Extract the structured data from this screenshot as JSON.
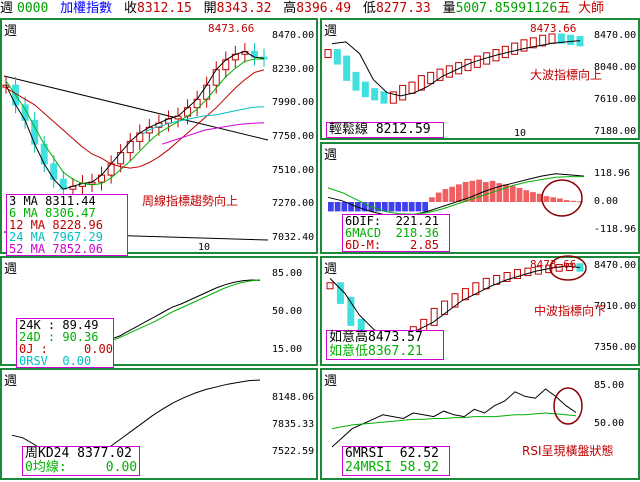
{
  "topbar": {
    "label_week": "週",
    "code": "0000",
    "index_name": "加權指數",
    "close_label": "收",
    "close": "8312.15",
    "open_label": "開",
    "open": "8343.32",
    "high_label": "高",
    "high": "8396.49",
    "low_label": "低",
    "low": "8277.33",
    "vol_label": "量",
    "vol": "5007.85991126",
    "suffix": "五 大師",
    "colors": {
      "code": "#00a000",
      "name": "#0000ff",
      "label": "#000000",
      "value": "#c00000"
    }
  },
  "panels": {
    "main": {
      "title": "週",
      "ma_box": [
        {
          "label": "3 MA",
          "value": "8311.44",
          "color": "#000000"
        },
        {
          "label": "6 MA",
          "value": "8306.47",
          "color": "#00b000"
        },
        {
          "label": "12 MA",
          "value": "8228.96",
          "color": "#c00000"
        },
        {
          "label": "24 MA",
          "value": "7967.29",
          "color": "#00c0c0"
        },
        {
          "label": "52 MA",
          "value": "7852.06",
          "color": "#d000d0"
        }
      ],
      "note": "周線指標趨勢向上",
      "peak_label": "8473.66",
      "xtick": "10"
    },
    "big_wave": {
      "title": "週",
      "peak_label": "8473.66",
      "box_label": "輕鬆線",
      "box_value": "8212.59",
      "note": "大波指標向上",
      "xtick": "10"
    },
    "macd": {
      "title": "週",
      "box": [
        {
          "label": "6DIF:",
          "value": "221.21",
          "color": "#000000"
        },
        {
          "label": "6MACD",
          "value": "218.36",
          "color": "#00b000"
        },
        {
          "label": "6D-M:",
          "value": "2.85",
          "color": "#c00000"
        }
      ]
    },
    "kd": {
      "title": "週",
      "box": [
        {
          "label": "24K :",
          "value": "89.49",
          "color": "#000000"
        },
        {
          "label": "24D :",
          "value": "90.36",
          "color": "#00b000"
        },
        {
          "label": "0J :",
          "value": "0.00",
          "color": "#c00000"
        },
        {
          "label": "0RSV",
          "value": "0.00",
          "color": "#00c0c0"
        }
      ]
    },
    "mid_wave": {
      "title": "週",
      "peak_label": "8473.66",
      "box": [
        {
          "label": "如意高",
          "value": "8473.57",
          "color": "#000000"
        },
        {
          "label": "如意低",
          "value": "8367.21",
          "color": "#00b000"
        }
      ],
      "note": "中波指標向下"
    },
    "kd2": {
      "title": "週",
      "box": [
        {
          "label": "周KD24",
          "value": "8377.02",
          "color": "#000000"
        },
        {
          "label": "0均線:",
          "value": "0.00",
          "color": "#00b000"
        }
      ]
    },
    "rsi": {
      "title": "週",
      "box": [
        {
          "label": "6MRSI",
          "value": "62.52",
          "color": "#000000"
        },
        {
          "label": "24MRSI",
          "value": "58.92",
          "color": "#00b000"
        }
      ],
      "note": "RSI呈現橫盤狀態"
    }
  },
  "chart_data": [
    {
      "type": "candlestick",
      "name": "main",
      "ylim": [
        7032.4,
        8470.0
      ],
      "yticks": [
        8470.0,
        8230.0,
        7990.0,
        7750.0,
        7510.0,
        7270.0,
        7032.4
      ],
      "ma3": [
        8120,
        7980,
        7870,
        7700,
        7560,
        7450,
        7380,
        7400,
        7420,
        7430,
        7480,
        7560,
        7640,
        7720,
        7780,
        7820,
        7850,
        7880,
        7900,
        7960,
        8020,
        8120,
        8230,
        8300,
        8340,
        8360,
        8320,
        8311
      ],
      "ma6": [
        8150,
        8050,
        7950,
        7820,
        7700,
        7600,
        7500,
        7450,
        7420,
        7410,
        7420,
        7460,
        7520,
        7580,
        7650,
        7720,
        7780,
        7820,
        7860,
        7900,
        7950,
        8020,
        8100,
        8180,
        8240,
        8290,
        8306,
        8306
      ],
      "ma12": [
        8100,
        8060,
        8020,
        7980,
        7920,
        7860,
        7800,
        7740,
        7680,
        7630,
        7600,
        7560,
        7540,
        7530,
        7540,
        7570,
        7610,
        7660,
        7720,
        7780,
        7840,
        7900,
        7960,
        8030,
        8100,
        8160,
        8210,
        8229
      ],
      "ma24": [
        7770,
        7800,
        7820,
        7830,
        7850,
        7860,
        7870,
        7880,
        7890,
        7900,
        7905,
        7910,
        7920,
        7930,
        7940,
        7950,
        7960,
        7965,
        7967
      ],
      "ma52": [
        7700,
        7720,
        7740,
        7760,
        7780,
        7800,
        7810,
        7820,
        7830,
        7840,
        7845,
        7850,
        7852
      ]
    },
    {
      "type": "bar",
      "name": "macd_histogram",
      "ylim": [
        -118.96,
        118.96
      ],
      "yticks": [
        118.96,
        0.0,
        -118.96
      ],
      "values": [
        -40,
        -40,
        -40,
        -40,
        -40,
        -40,
        -40,
        -40,
        -40,
        -40,
        -40,
        -40,
        -40,
        -40,
        -40,
        20,
        40,
        55,
        65,
        75,
        85,
        90,
        95,
        85,
        90,
        80,
        75,
        68,
        60,
        50,
        42,
        35,
        25,
        20,
        15,
        8,
        5,
        3
      ]
    },
    {
      "type": "line",
      "name": "kd",
      "yticks": [
        85.0,
        50.0,
        15.0
      ],
      "series": [
        {
          "name": "24K",
          "values": [
            13,
            16,
            20,
            26,
            32,
            38,
            44,
            50,
            56,
            60,
            65,
            70,
            75,
            80,
            84,
            87,
            89,
            90,
            89.49
          ]
        },
        {
          "name": "24D",
          "values": [
            12,
            14,
            18,
            23,
            28,
            33,
            38,
            44,
            50,
            55,
            60,
            65,
            70,
            75,
            80,
            84,
            87,
            89,
            90.36
          ]
        }
      ]
    },
    {
      "type": "line",
      "name": "kd2",
      "yticks": [
        8148.06,
        7835.33,
        7522.59
      ],
      "series": [
        {
          "name": "周KD24",
          "values": [
            7750,
            7720,
            7650,
            7560,
            7480,
            7420,
            7400,
            7440,
            7520,
            7610,
            7700,
            7790,
            7880,
            7970,
            8050,
            8120,
            8180,
            8230,
            8270,
            8300,
            8330,
            8350,
            8370,
            8377
          ]
        }
      ]
    },
    {
      "type": "line",
      "name": "rsi",
      "yticks": [
        85.0,
        50.0
      ],
      "series": [
        {
          "name": "6MRSI",
          "values": [
            25,
            35,
            45,
            50,
            55,
            60,
            58,
            56,
            62,
            60,
            58,
            64,
            60,
            58,
            66,
            62,
            70,
            75,
            85,
            80,
            78,
            88,
            80,
            70,
            62.52
          ]
        },
        {
          "name": "24MRSI",
          "values": [
            45,
            47,
            49,
            50,
            51,
            52,
            53,
            54,
            55,
            55,
            56,
            56,
            57,
            57,
            58,
            58,
            58,
            59,
            60,
            60,
            61,
            62,
            61,
            60,
            58.92
          ]
        }
      ]
    }
  ]
}
